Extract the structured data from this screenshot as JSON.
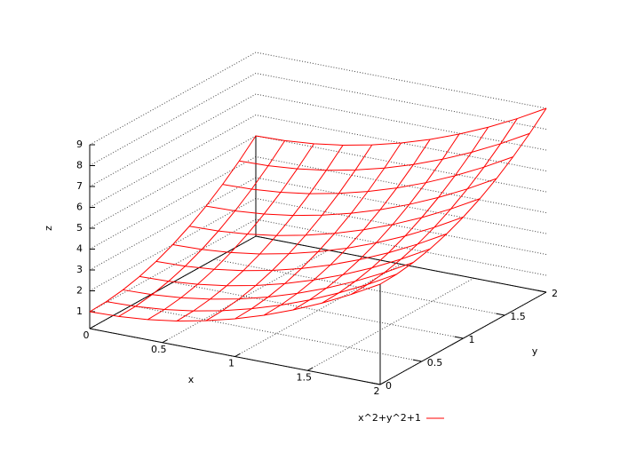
{
  "chart_data": {
    "type": "surface",
    "xlabel": "x",
    "ylabel": "y",
    "zlabel": "z",
    "x": [
      0,
      0.2,
      0.4,
      0.6,
      0.8,
      1,
      1.2,
      1.4,
      1.6,
      1.8,
      2
    ],
    "y": [
      0,
      0.2,
      0.4,
      0.6,
      0.8,
      1,
      1.2,
      1.4,
      1.6,
      1.8,
      2
    ],
    "z": [
      [
        1,
        1.04,
        1.16,
        1.36,
        1.64,
        2,
        2.44,
        2.96,
        3.56,
        4.24,
        5
      ],
      [
        1.04,
        1.08,
        1.2,
        1.4,
        1.68,
        2.04,
        2.48,
        3,
        3.6,
        4.28,
        5.04
      ],
      [
        1.16,
        1.2,
        1.32,
        1.52,
        1.8,
        2.16,
        2.6,
        3.12,
        3.72,
        4.4,
        5.16
      ],
      [
        1.36,
        1.4,
        1.52,
        1.72,
        2,
        2.36,
        2.8,
        3.32,
        3.92,
        4.6,
        5.36
      ],
      [
        1.64,
        1.68,
        1.8,
        2,
        2.28,
        2.64,
        3.08,
        3.6,
        4.2,
        4.88,
        5.64
      ],
      [
        2,
        2.04,
        2.16,
        2.36,
        2.64,
        3,
        3.44,
        3.96,
        4.56,
        5.24,
        6
      ],
      [
        2.44,
        2.48,
        2.6,
        2.8,
        3.08,
        3.44,
        3.88,
        4.4,
        5,
        5.68,
        6.44
      ],
      [
        2.96,
        3,
        3.12,
        3.32,
        3.6,
        3.96,
        4.4,
        4.92,
        5.52,
        6.2,
        6.96
      ],
      [
        3.56,
        3.6,
        3.72,
        3.92,
        4.2,
        4.56,
        5,
        5.52,
        6.12,
        6.8,
        7.56
      ],
      [
        4.24,
        4.28,
        4.4,
        4.6,
        4.88,
        5.24,
        5.68,
        6.2,
        6.8,
        7.48,
        8.24
      ],
      [
        5,
        5.04,
        5.16,
        5.36,
        5.64,
        6,
        6.44,
        6.96,
        7.56,
        8.24,
        9
      ]
    ],
    "series": [
      {
        "name": "x^2+y^2+1",
        "color": "#ff0000"
      }
    ],
    "xlim": [
      0,
      2
    ],
    "ylim": [
      0,
      2
    ],
    "zlim": [
      1,
      9
    ],
    "xticks": [
      0,
      0.5,
      1,
      1.5,
      2
    ],
    "yticks": [
      0,
      0.5,
      1,
      1.5,
      2
    ],
    "zticks": [
      1,
      2,
      3,
      4,
      5,
      6,
      7,
      8,
      9
    ],
    "grid": true
  }
}
